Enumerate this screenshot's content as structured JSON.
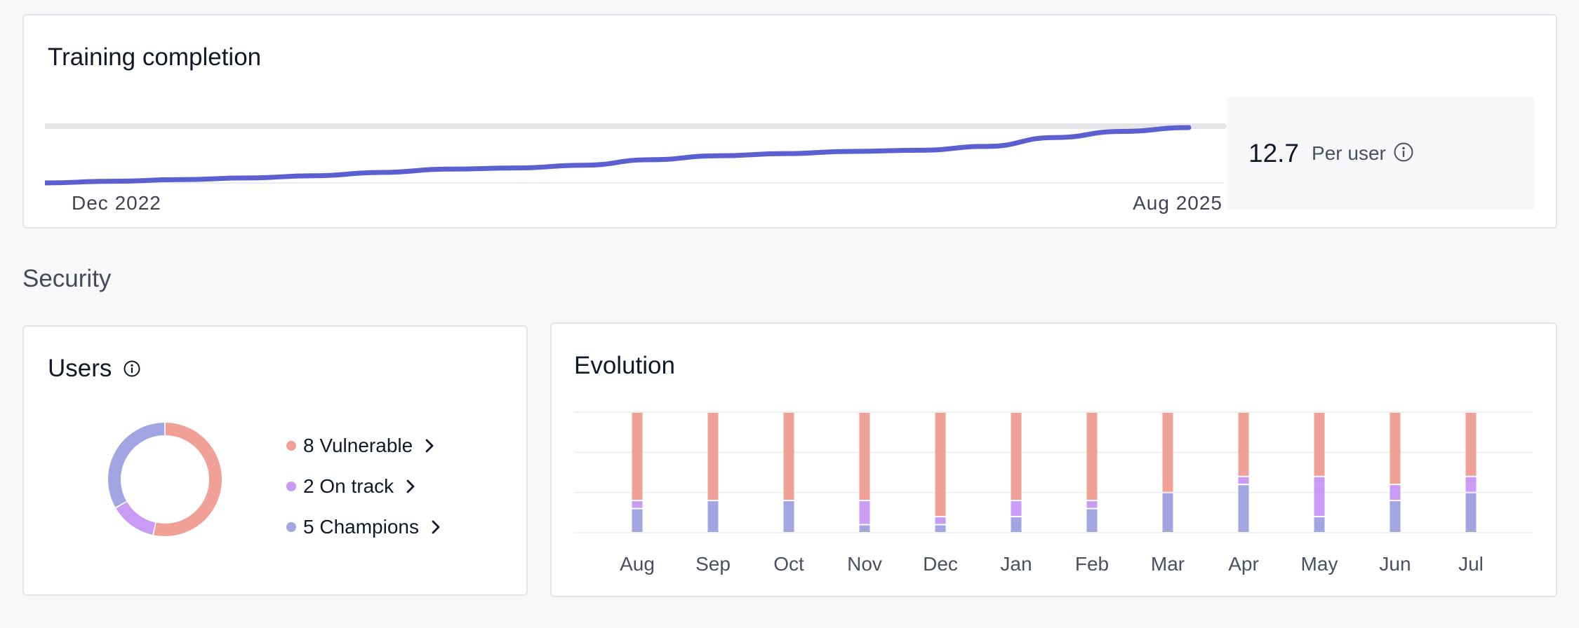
{
  "training": {
    "title": "Training completion",
    "x_start_label": "Dec 2022",
    "x_end_label": "Aug 2025",
    "stat_value": "12.7",
    "stat_unit": "Per user",
    "line_color": "#5b5fcf",
    "progress_track_color": "#e5e5e8",
    "trend_values": [
      0.0,
      0.03,
      0.06,
      0.09,
      0.13,
      0.19,
      0.25,
      0.27,
      0.32,
      0.42,
      0.49,
      0.53,
      0.57,
      0.59,
      0.66,
      0.82,
      0.93,
      1.0
    ]
  },
  "section": {
    "title": "Security"
  },
  "users": {
    "title": "Users",
    "items": [
      {
        "count": 8,
        "label": "8 Vulnerable",
        "color": "#f0a097"
      },
      {
        "count": 2,
        "label": "2 On track",
        "color": "#c99bf5"
      },
      {
        "count": 5,
        "label": "5 Champions",
        "color": "#a3a5e3"
      }
    ]
  },
  "evolution": {
    "title": "Evolution",
    "chart_data": {
      "type": "bar",
      "stacked": true,
      "categories": [
        "Aug",
        "Sep",
        "Oct",
        "Nov",
        "Dec",
        "Jan",
        "Feb",
        "Mar",
        "Apr",
        "May",
        "Jun",
        "Jul"
      ],
      "series": [
        {
          "name": "Champions",
          "color": "#a3a5e3",
          "values": [
            3,
            4,
            4,
            1,
            1,
            2,
            3,
            5,
            6,
            2,
            4,
            5
          ]
        },
        {
          "name": "On track",
          "color": "#c99bf5",
          "values": [
            1,
            0,
            0,
            3,
            1,
            2,
            1,
            0,
            1,
            5,
            2,
            2
          ]
        },
        {
          "name": "Vulnerable",
          "color": "#f0a097",
          "values": [
            11,
            11,
            11,
            11,
            13,
            11,
            11,
            10,
            8,
            8,
            9,
            8
          ]
        }
      ],
      "ylim": [
        0,
        15
      ],
      "grid": true
    }
  }
}
